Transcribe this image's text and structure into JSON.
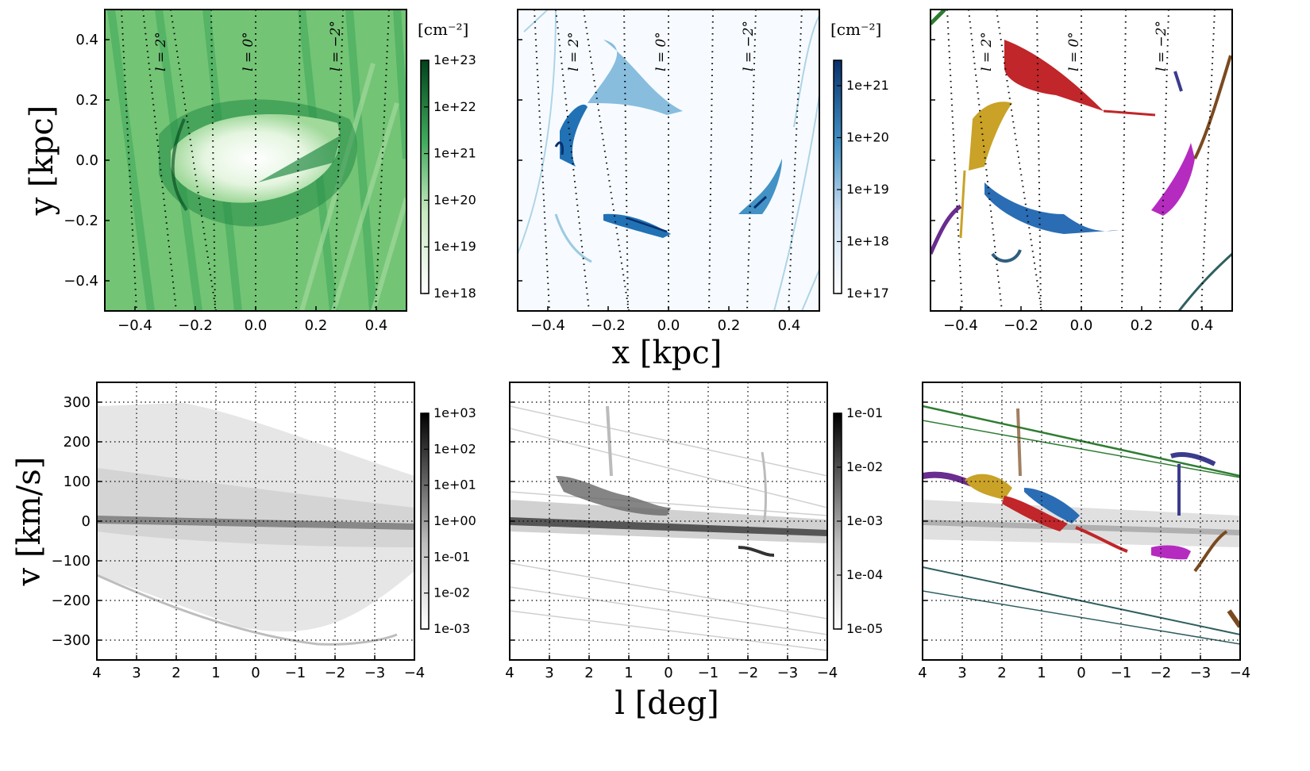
{
  "figure": {
    "x_axis_label": "x [kpc]",
    "y_axis_label": "y [kpc]",
    "l_axis_label": "l [deg]",
    "v_axis_label": "v [km/s]",
    "colorbar_unit": "[cm⁻²]"
  },
  "chart_data": [
    {
      "id": "top-left",
      "type": "heatmap",
      "colormap": "Greens",
      "xlim": [
        -0.5,
        0.5
      ],
      "ylim": [
        -0.5,
        0.5
      ],
      "x_ticks": [
        "−0.4",
        "−0.2",
        "0.0",
        "0.2",
        "0.4"
      ],
      "y_ticks": [
        "−0.4",
        "−0.2",
        "0.0",
        "0.2",
        "0.4"
      ],
      "colorbar": {
        "unit": "[cm⁻²]",
        "ticks": [
          "1e+18",
          "1e+19",
          "1e+20",
          "1e+21",
          "1e+22",
          "1e+23"
        ],
        "colors": [
          "#ffffff",
          "#00441b"
        ]
      },
      "longitude_labels": [
        "l = 2°",
        "l = 0°",
        "l = −2°"
      ]
    },
    {
      "id": "top-middle",
      "type": "heatmap",
      "colormap": "Blues",
      "xlim": [
        -0.5,
        0.5
      ],
      "ylim": [
        -0.5,
        0.5
      ],
      "x_ticks": [
        "−0.4",
        "−0.2",
        "0.0",
        "0.2",
        "0.4"
      ],
      "colorbar": {
        "unit": "[cm⁻²]",
        "ticks": [
          "1e+17",
          "1e+18",
          "1e+19",
          "1e+20",
          "1e+21"
        ],
        "colors": [
          "#ffffff",
          "#08306b"
        ]
      },
      "longitude_labels": [
        "l = 2°",
        "l = 0°",
        "l = −2°"
      ]
    },
    {
      "id": "top-right",
      "type": "heatmap",
      "colormap": "categorical",
      "xlim": [
        -0.5,
        0.5
      ],
      "ylim": [
        -0.5,
        0.5
      ],
      "x_ticks": [
        "−0.4",
        "−0.2",
        "0.0",
        "0.2",
        "0.4"
      ],
      "cloud_colors": [
        "#c0262a",
        "#c9a227",
        "#2a6db5",
        "#b52bc0",
        "#6a2c8e",
        "#7a4a20",
        "#2e7d32",
        "#3b3b8e",
        "#2f5f5f"
      ],
      "longitude_labels": [
        "l = 2°",
        "l = 0°",
        "l = −2°"
      ]
    },
    {
      "id": "bottom-left",
      "type": "heatmap",
      "colormap": "Greys",
      "xlim": [
        4,
        -4
      ],
      "ylim": [
        -350,
        350
      ],
      "x_ticks": [
        "4",
        "3",
        "2",
        "1",
        "0",
        "−1",
        "−2",
        "−3",
        "−4"
      ],
      "y_ticks": [
        "300",
        "200",
        "100",
        "0",
        "−100",
        "−200",
        "−300"
      ],
      "colorbar": {
        "ticks": [
          "1e-03",
          "1e-02",
          "1e-01",
          "1e+00",
          "1e+01",
          "1e+02",
          "1e+03"
        ],
        "colors": [
          "#ffffff",
          "#000000"
        ]
      }
    },
    {
      "id": "bottom-middle",
      "type": "heatmap",
      "colormap": "Greys",
      "xlim": [
        4,
        -4
      ],
      "ylim": [
        -350,
        350
      ],
      "x_ticks": [
        "4",
        "3",
        "2",
        "1",
        "0",
        "−1",
        "−2",
        "−3",
        "−4"
      ],
      "colorbar": {
        "ticks": [
          "1e-05",
          "1e-04",
          "1e-03",
          "1e-02",
          "1e-01"
        ],
        "colors": [
          "#ffffff",
          "#000000"
        ]
      }
    },
    {
      "id": "bottom-right",
      "type": "heatmap",
      "colormap": "categorical",
      "xlim": [
        4,
        -4
      ],
      "ylim": [
        -350,
        350
      ],
      "x_ticks": [
        "4",
        "3",
        "2",
        "1",
        "0",
        "−1",
        "−2",
        "−3",
        "−4"
      ]
    }
  ]
}
